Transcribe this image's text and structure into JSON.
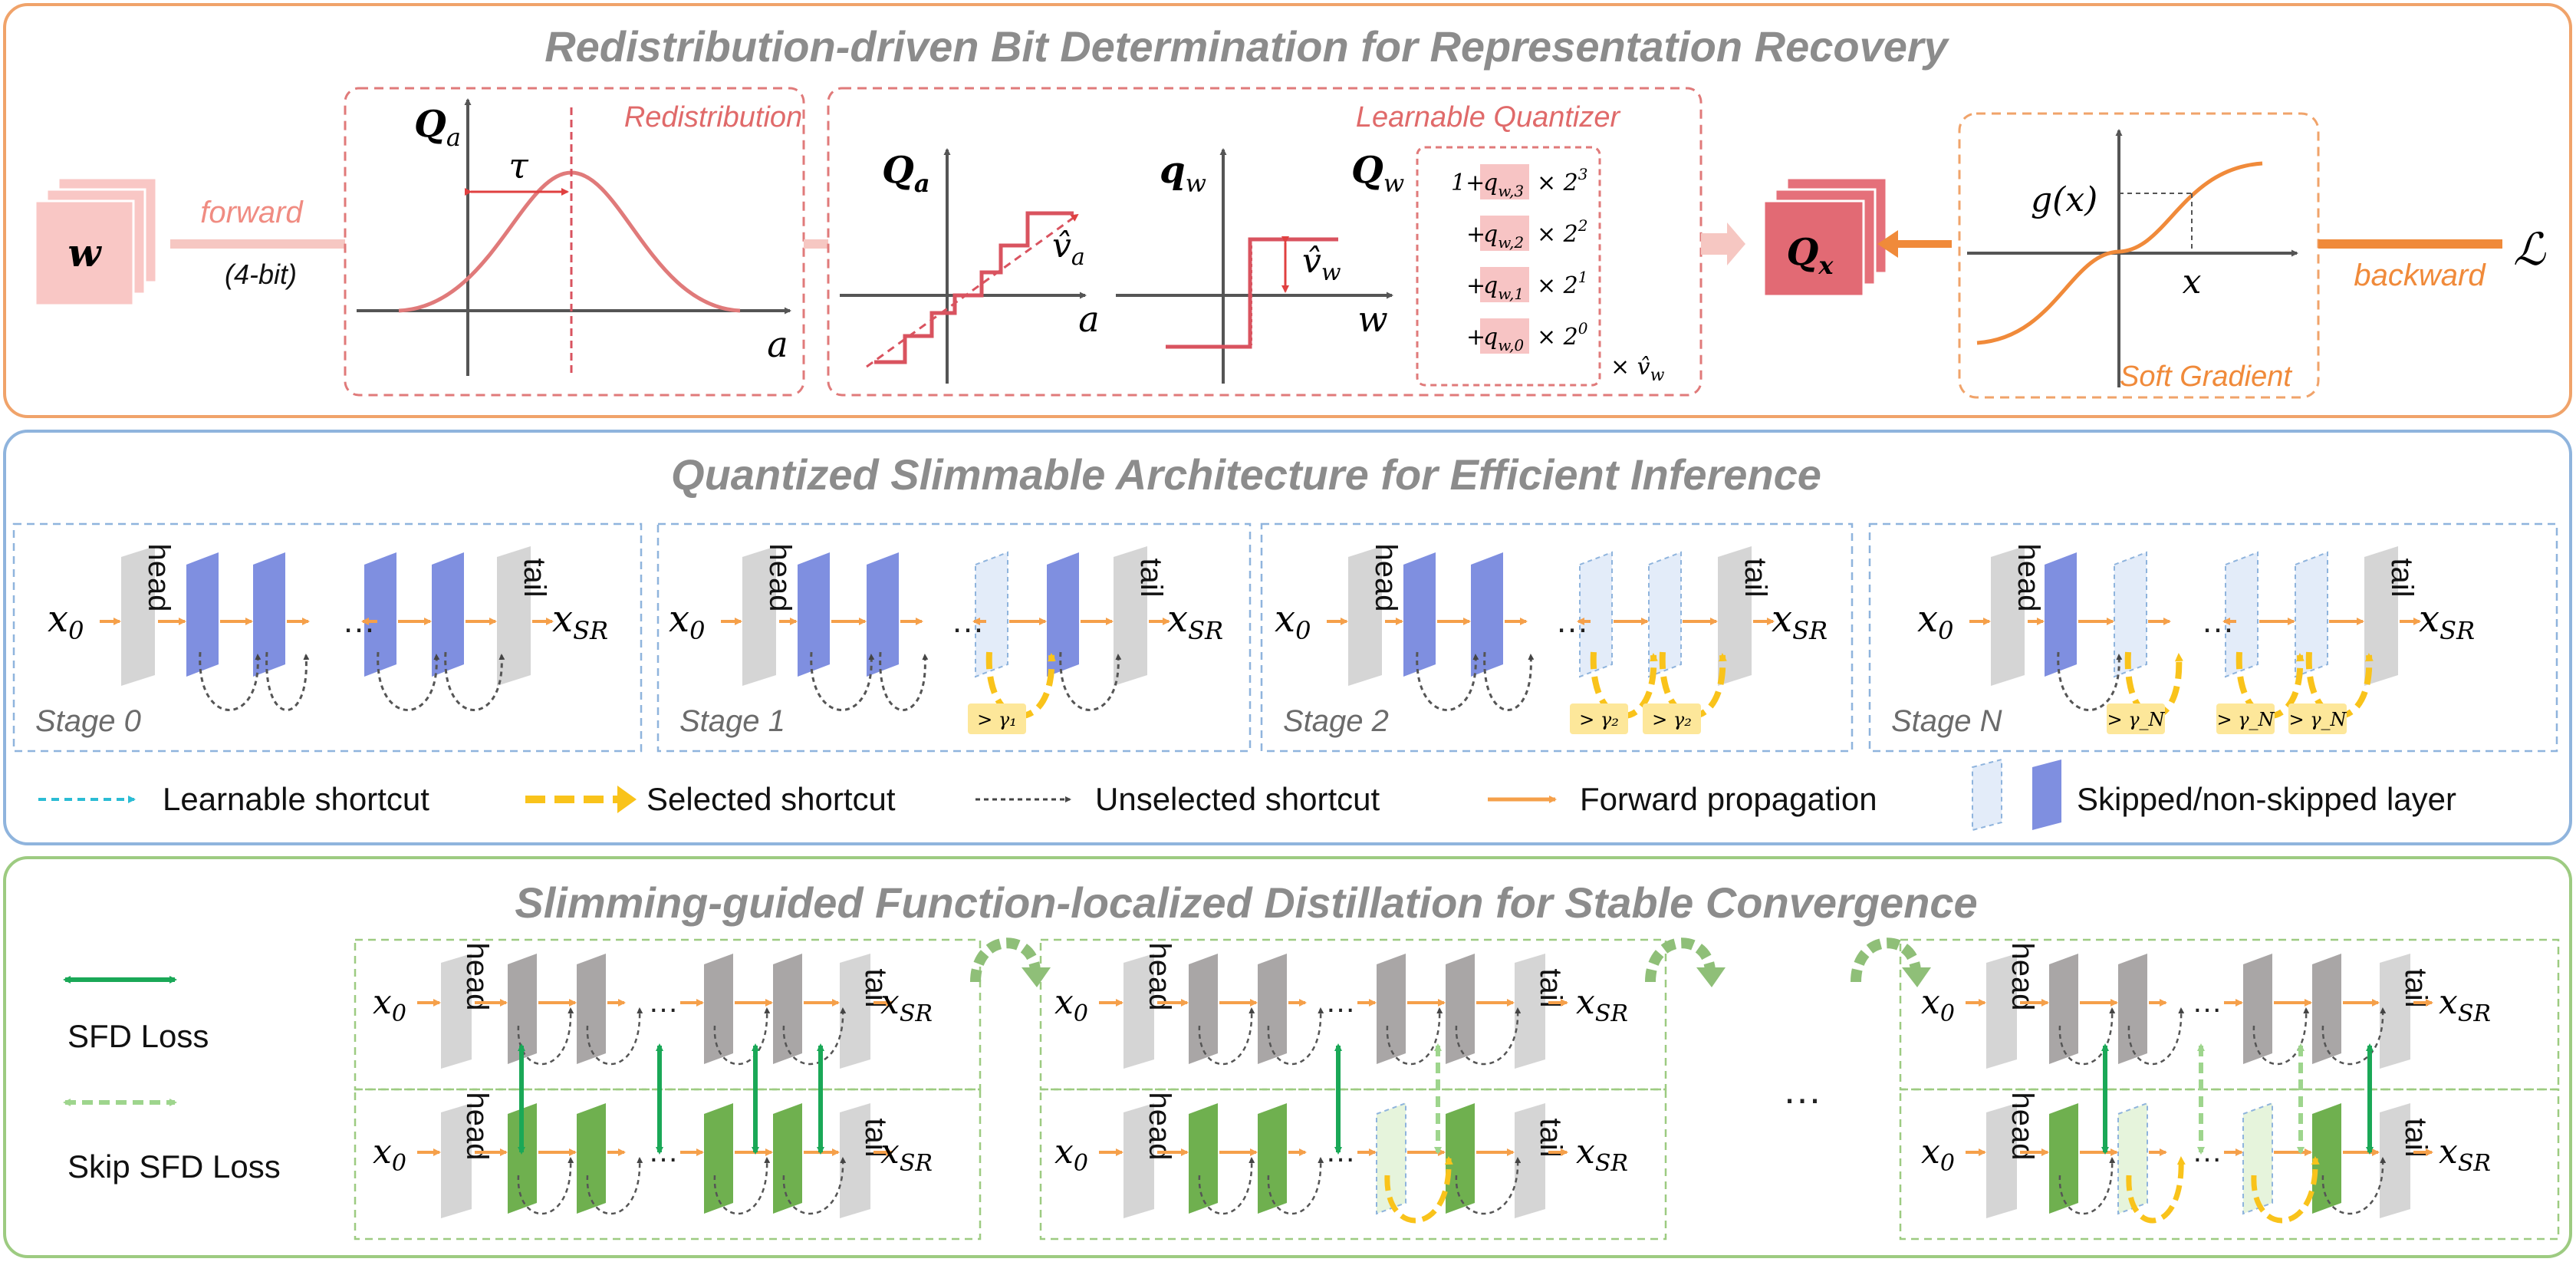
{
  "colors": {
    "panel1_border": "#f0a36a",
    "panel2_border": "#8fb4dd",
    "panel3_border": "#9dcb81",
    "forward_orange": "#f5a04a",
    "selected_yellow": "#f9c31b",
    "quant_red": "#d9535f",
    "skipped_fill": "#e3ecf9",
    "nonskipped_fill": "#7f8fe0",
    "teacher_gray": "#a9a6a6",
    "student_green": "#6fb04f",
    "sfd_green": "#1aa857",
    "skip_sfd_green": "#9ed58d"
  },
  "panel1": {
    "title": "Redistribution-driven Bit Determination for Representation Recovery",
    "input_label": "w",
    "forward_label": "forward",
    "bits_label": "(4-bit)",
    "redistribution_label": "Redistribution",
    "qa_label": "Q",
    "qa_sub": "a",
    "tau_label": "τ",
    "axis_a": "a",
    "learnable_quantizer_label": "Learnable Quantizer",
    "qa_bold": "Q",
    "qa_bold_sub": "a",
    "va_label": "v̂",
    "va_sub": "a",
    "qw_label": "q",
    "qw_sub": "w",
    "vw_label": "v̂",
    "vw_sub": "w",
    "axis_w": "w",
    "Qw_label": "Q",
    "Qw_sub": "w",
    "bit_terms": [
      {
        "prefix": "1+",
        "q": "q",
        "sub": "w,3",
        "times": "× 2",
        "exp": "3"
      },
      {
        "prefix": "+",
        "q": "q",
        "sub": "w,2",
        "times": "× 2",
        "exp": "2"
      },
      {
        "prefix": "+",
        "q": "q",
        "sub": "w,1",
        "times": "× 2",
        "exp": "1"
      },
      {
        "prefix": "+",
        "q": "q",
        "sub": "w,0",
        "times": "× 2",
        "exp": "0"
      }
    ],
    "scale_label": "× v̂",
    "scale_sub": "w",
    "qx_label": "Q",
    "qx_sub": "x",
    "gx_label": "g(x)",
    "axis_x": "x",
    "soft_gradient_label": "Soft Gradient",
    "backward_label": "backward",
    "loss_label": "ℒ"
  },
  "panel2": {
    "title": "Quantized Slimmable Architecture for Efficient Inference",
    "x0": "x",
    "x0_sub": "0",
    "xsr": "x",
    "xsr_sub": "SR",
    "head": "head",
    "tail": "tail",
    "dots": "…",
    "stages": [
      {
        "label": "Stage 0",
        "thresholds": []
      },
      {
        "label": "Stage 1",
        "thresholds": [
          "> γ₁"
        ]
      },
      {
        "label": "Stage 2",
        "thresholds": [
          "> γ₂",
          "> γ₂"
        ]
      },
      {
        "label": "Stage N",
        "thresholds": [
          "> γ_N",
          "> γ_N",
          "> γ_N"
        ]
      }
    ],
    "legend": [
      {
        "text": "Learnable shortcut",
        "type": "learnable"
      },
      {
        "text": "Selected shortcut",
        "type": "selected"
      },
      {
        "text": "Unselected shortcut",
        "type": "unselected"
      },
      {
        "text": "Forward propagation",
        "type": "forward"
      },
      {
        "text": "Skipped/non-skipped layer",
        "type": "layers"
      }
    ]
  },
  "panel3": {
    "title": "Slimming-guided Function-localized Distillation for Stable Convergence",
    "sfd_loss_label": "SFD Loss",
    "skip_sfd_loss_label": "Skip SFD Loss",
    "middle_dots": "…"
  }
}
